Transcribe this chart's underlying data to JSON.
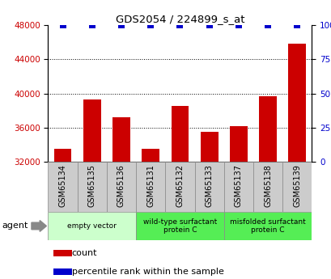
{
  "title": "GDS2054 / 224899_s_at",
  "categories": [
    "GSM65134",
    "GSM65135",
    "GSM65136",
    "GSM65131",
    "GSM65132",
    "GSM65133",
    "GSM65137",
    "GSM65138",
    "GSM65139"
  ],
  "count_values": [
    33500,
    39300,
    37200,
    33500,
    38500,
    35500,
    36200,
    39700,
    45800
  ],
  "percentile_values": [
    100,
    100,
    100,
    100,
    100,
    100,
    100,
    100,
    100
  ],
  "bar_color": "#cc0000",
  "dot_color": "#0000cc",
  "ylim_left": [
    32000,
    48000
  ],
  "ylim_right": [
    0,
    100
  ],
  "yticks_left": [
    32000,
    36000,
    40000,
    44000,
    48000
  ],
  "yticks_right": [
    0,
    25,
    50,
    75,
    100
  ],
  "grid_ticks": [
    36000,
    40000,
    44000
  ],
  "group_info": [
    {
      "start": 0,
      "end": 2,
      "label": "empty vector",
      "color": "#ccffcc"
    },
    {
      "start": 3,
      "end": 5,
      "label": "wild-type surfactant\nprotein C",
      "color": "#55ee55"
    },
    {
      "start": 6,
      "end": 8,
      "label": "misfolded surfactant\nprotein C",
      "color": "#55ee55"
    }
  ],
  "agent_label": "agent",
  "legend_count_label": "count",
  "legend_percentile_label": "percentile rank within the sample",
  "tick_label_color_left": "#cc0000",
  "tick_label_color_right": "#0000cc",
  "bar_width": 0.6,
  "dot_size": 30,
  "cell_color": "#cccccc",
  "cell_edgecolor": "#888888"
}
